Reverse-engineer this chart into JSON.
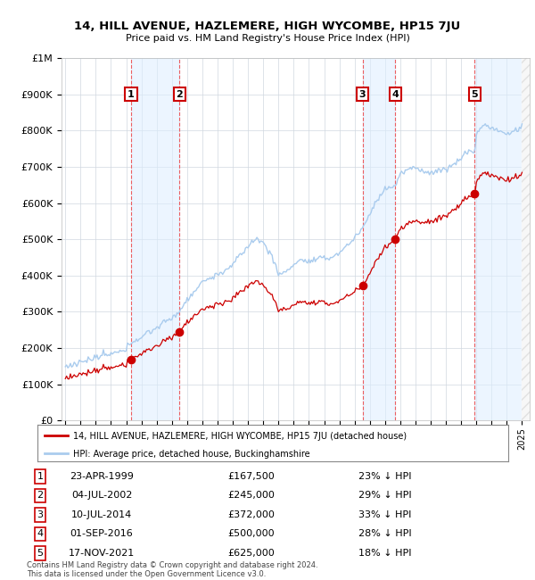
{
  "title": "14, HILL AVENUE, HAZLEMERE, HIGH WYCOMBE, HP15 7JU",
  "subtitle": "Price paid vs. HM Land Registry's House Price Index (HPI)",
  "transactions": [
    {
      "num": 1,
      "date": "23-APR-1999",
      "price": 167500,
      "year": 1999.31,
      "pct": "23% ↓ HPI"
    },
    {
      "num": 2,
      "date": "04-JUL-2002",
      "price": 245000,
      "year": 2002.5,
      "pct": "29% ↓ HPI"
    },
    {
      "num": 3,
      "date": "10-JUL-2014",
      "price": 372000,
      "year": 2014.52,
      "pct": "33% ↓ HPI"
    },
    {
      "num": 4,
      "date": "01-SEP-2016",
      "price": 500000,
      "year": 2016.67,
      "pct": "28% ↓ HPI"
    },
    {
      "num": 5,
      "date": "17-NOV-2021",
      "price": 625000,
      "year": 2021.88,
      "pct": "18% ↓ HPI"
    }
  ],
  "hpi_label": "HPI: Average price, detached house, Buckinghamshire",
  "property_label": "14, HILL AVENUE, HAZLEMERE, HIGH WYCOMBE, HP15 7JU (detached house)",
  "footer": "Contains HM Land Registry data © Crown copyright and database right 2024.\nThis data is licensed under the Open Government Licence v3.0.",
  "ylim": [
    0,
    1000000
  ],
  "yticks": [
    0,
    100000,
    200000,
    300000,
    400000,
    500000,
    600000,
    700000,
    800000,
    900000,
    1000000
  ],
  "xlim_start": 1994.75,
  "xlim_end": 2025.5,
  "hpi_color": "#aaccee",
  "price_color": "#cc0000",
  "vline_color": "#ee4444",
  "marker_color": "#cc0000",
  "box_color": "#cc0000",
  "shade_color": "#ddeeff",
  "background_color": "#ffffff"
}
